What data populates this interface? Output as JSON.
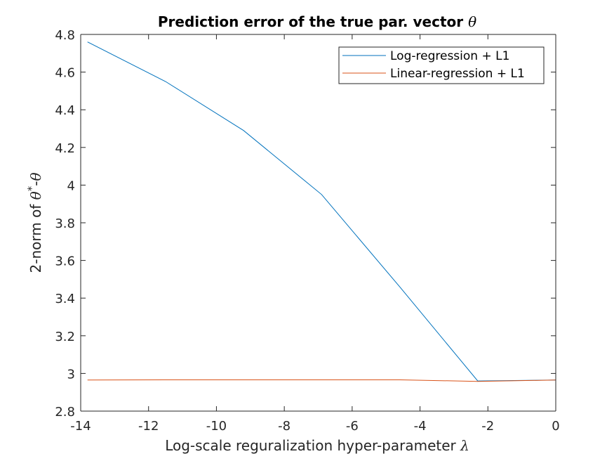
{
  "chart_data": {
    "type": "line",
    "title": "Prediction error of the true par. vector",
    "title_symbol": "θ",
    "xlabel": "Log-scale reguralization hyper-parameter",
    "xlabel_symbol": "λ",
    "ylabel": {
      "prefix": "2-norm of ",
      "theta": "θ",
      "star": "*",
      "minus": "-",
      "theta2": "θ"
    },
    "xlim": [
      -14,
      0
    ],
    "ylim": [
      2.8,
      4.8
    ],
    "xticks": [
      -14,
      -12,
      -10,
      -8,
      -6,
      -4,
      -2,
      0
    ],
    "xtick_labels": [
      "-14",
      "-12",
      "-10",
      "-8",
      "-6",
      "-4",
      "-2",
      "0"
    ],
    "yticks": [
      2.8,
      3,
      3.2,
      3.4,
      3.6,
      3.8,
      4,
      4.2,
      4.4,
      4.6,
      4.8
    ],
    "ytick_labels": [
      "2.8",
      "3",
      "3.2",
      "3.4",
      "3.6",
      "3.8",
      "4",
      "4.2",
      "4.4",
      "4.6",
      "4.8"
    ],
    "grid": false,
    "legend_position": "top-right",
    "series": [
      {
        "name": "Log-regression + L1",
        "color": "#0072bd",
        "x": [
          -13.8,
          -11.5,
          -9.2,
          -6.9,
          -4.6,
          -2.3,
          0
        ],
        "y": [
          4.76,
          4.55,
          4.29,
          3.95,
          3.46,
          2.96,
          2.965
        ]
      },
      {
        "name": "Linear-regression + L1",
        "color": "#d95319",
        "x": [
          -13.8,
          -11.5,
          -9.2,
          -6.9,
          -4.6,
          -2.3,
          0
        ],
        "y": [
          2.965,
          2.966,
          2.966,
          2.966,
          2.966,
          2.958,
          2.965
        ]
      }
    ]
  }
}
